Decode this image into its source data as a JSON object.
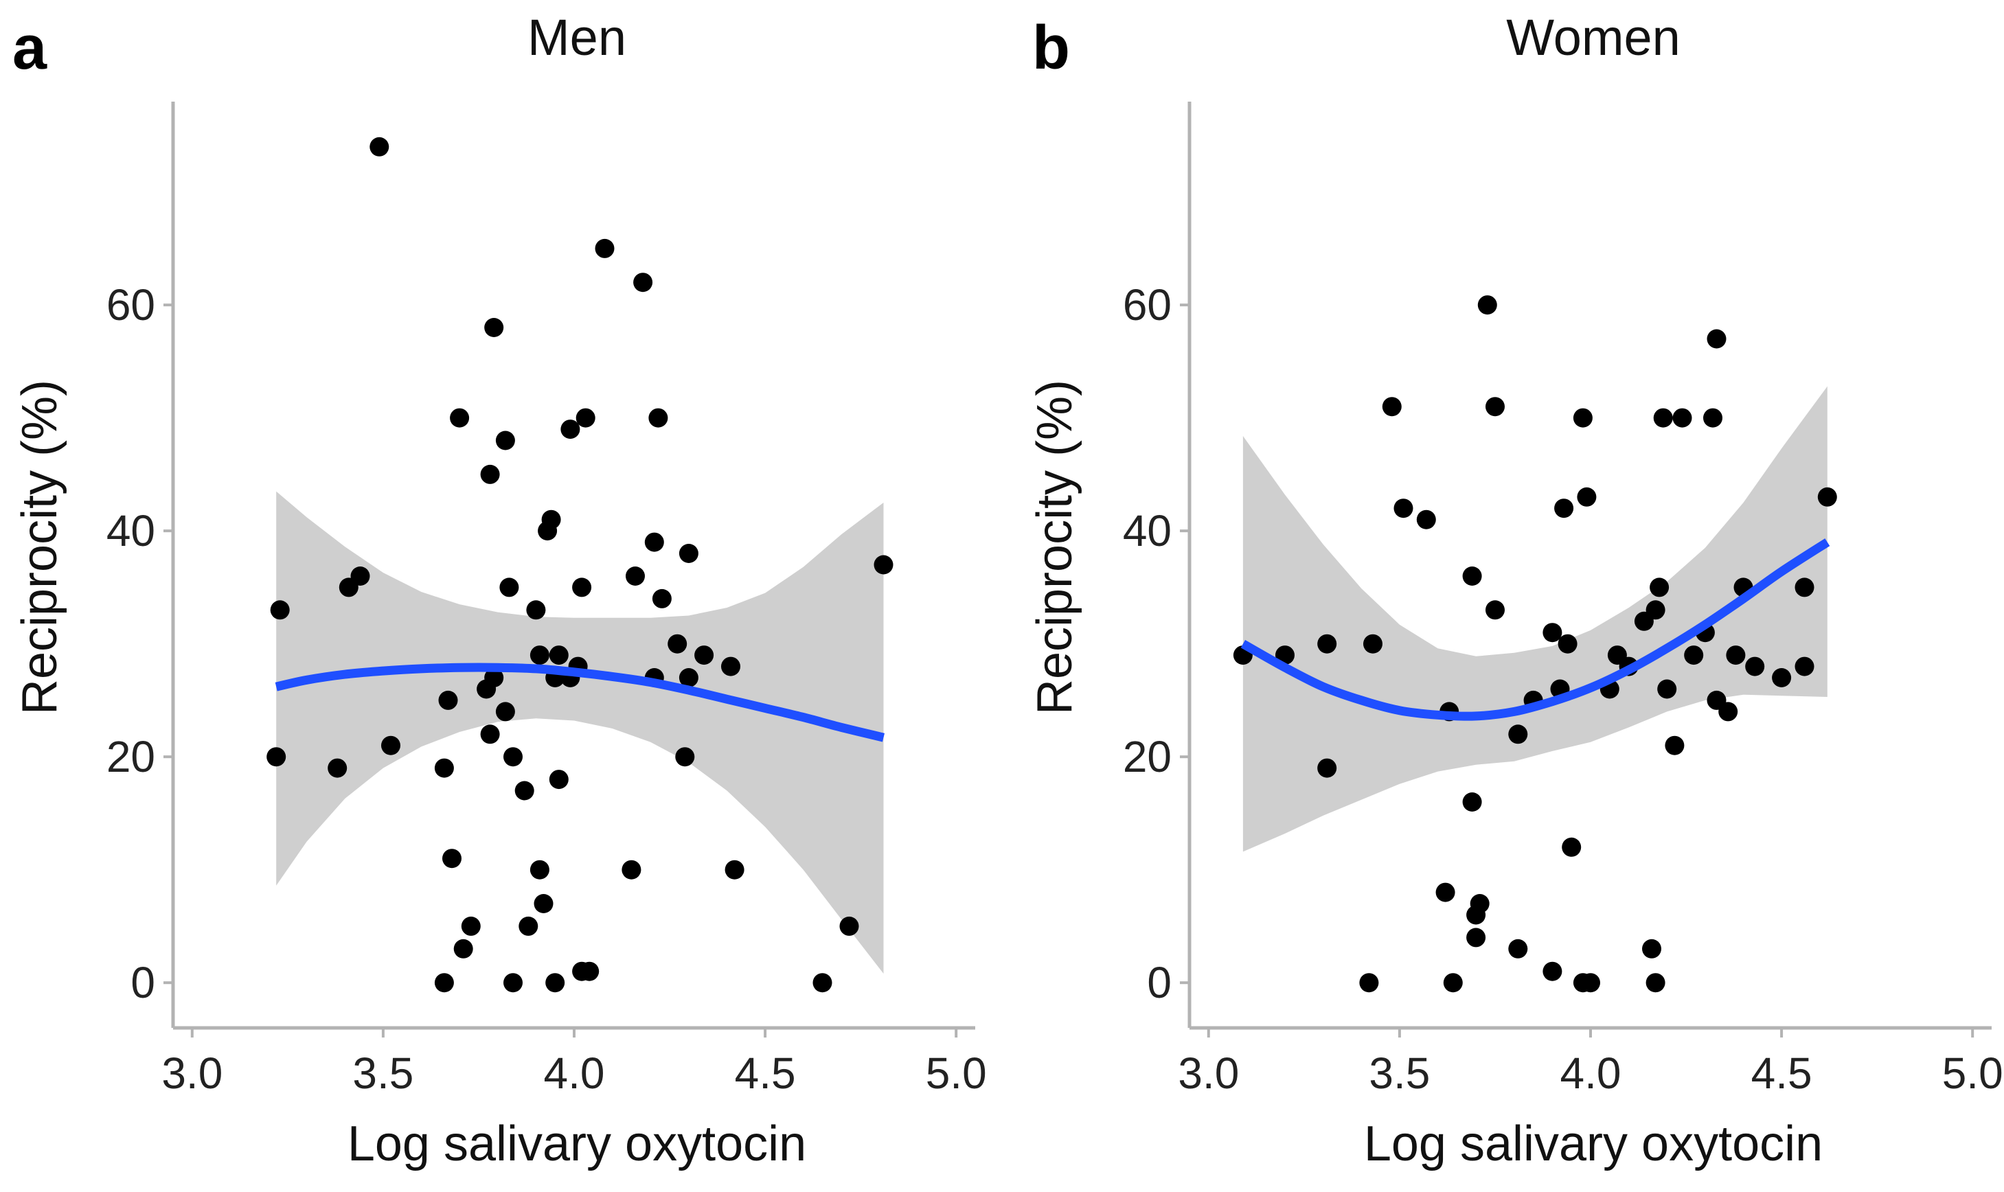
{
  "chart_data": [
    {
      "type": "scatter",
      "panel_label": "a",
      "title": "Men",
      "xlabel": "Log salivary oxytocin",
      "ylabel": "Reciprocity (%)",
      "xlim": [
        2.95,
        5.05
      ],
      "ylim": [
        -4,
        78
      ],
      "xticks": [
        3.0,
        3.5,
        4.0,
        4.5,
        5.0
      ],
      "xtick_labels": [
        "3.0",
        "3.5",
        "4.0",
        "4.5",
        "5.0"
      ],
      "yticks": [
        0,
        20,
        40,
        60
      ],
      "ytick_labels": [
        "0",
        "20",
        "40",
        "60"
      ],
      "points": [
        [
          3.22,
          20
        ],
        [
          3.23,
          33
        ],
        [
          3.38,
          19
        ],
        [
          3.41,
          35
        ],
        [
          3.44,
          36
        ],
        [
          3.49,
          74
        ],
        [
          3.52,
          21
        ],
        [
          3.66,
          19
        ],
        [
          3.66,
          0
        ],
        [
          3.67,
          25
        ],
        [
          3.68,
          11
        ],
        [
          3.7,
          50
        ],
        [
          3.71,
          3
        ],
        [
          3.73,
          5
        ],
        [
          3.77,
          26
        ],
        [
          3.78,
          22
        ],
        [
          3.78,
          45
        ],
        [
          3.79,
          27
        ],
        [
          3.79,
          58
        ],
        [
          3.82,
          24
        ],
        [
          3.82,
          48
        ],
        [
          3.83,
          35
        ],
        [
          3.84,
          20
        ],
        [
          3.84,
          0
        ],
        [
          3.87,
          17
        ],
        [
          3.88,
          5
        ],
        [
          3.9,
          33
        ],
        [
          3.91,
          29
        ],
        [
          3.91,
          10
        ],
        [
          3.92,
          7
        ],
        [
          3.93,
          40
        ],
        [
          3.94,
          41
        ],
        [
          3.95,
          27
        ],
        [
          3.95,
          0
        ],
        [
          3.96,
          29
        ],
        [
          3.96,
          18
        ],
        [
          3.99,
          27
        ],
        [
          3.99,
          49
        ],
        [
          4.01,
          28
        ],
        [
          4.02,
          1
        ],
        [
          4.02,
          35
        ],
        [
          4.03,
          50
        ],
        [
          4.04,
          1
        ],
        [
          4.08,
          65
        ],
        [
          4.15,
          10
        ],
        [
          4.16,
          36
        ],
        [
          4.18,
          62
        ],
        [
          4.21,
          39
        ],
        [
          4.21,
          27
        ],
        [
          4.22,
          50
        ],
        [
          4.23,
          34
        ],
        [
          4.27,
          30
        ],
        [
          4.29,
          20
        ],
        [
          4.3,
          38
        ],
        [
          4.3,
          27
        ],
        [
          4.34,
          29
        ],
        [
          4.41,
          28
        ],
        [
          4.42,
          10
        ],
        [
          4.65,
          0
        ],
        [
          4.72,
          5
        ],
        [
          4.81,
          37
        ]
      ],
      "fit": {
        "x": [
          3.22,
          3.3,
          3.4,
          3.5,
          3.6,
          3.7,
          3.8,
          3.9,
          4.0,
          4.1,
          4.2,
          4.3,
          4.4,
          4.5,
          4.6,
          4.7,
          4.81
        ],
        "y": [
          26.2,
          26.8,
          27.3,
          27.6,
          27.8,
          27.9,
          27.9,
          27.8,
          27.5,
          27.1,
          26.6,
          25.9,
          25.1,
          24.3,
          23.5,
          22.6,
          21.7
        ],
        "lower": [
          8.6,
          12.5,
          16.3,
          19.0,
          20.9,
          22.2,
          23.1,
          23.4,
          23.2,
          22.5,
          21.3,
          19.5,
          17.0,
          13.8,
          10.0,
          5.6,
          0.8
        ],
        "upper": [
          43.5,
          41.2,
          38.6,
          36.3,
          34.6,
          33.5,
          32.8,
          32.4,
          32.3,
          32.3,
          32.3,
          32.5,
          33.2,
          34.5,
          36.8,
          39.7,
          42.5
        ]
      }
    },
    {
      "type": "scatter",
      "panel_label": "b",
      "title": "Women",
      "xlabel": "Log salivary oxytocin",
      "ylabel": "Reciprocity (%)",
      "xlim": [
        2.95,
        5.05
      ],
      "ylim": [
        -4,
        78
      ],
      "xticks": [
        3.0,
        3.5,
        4.0,
        4.5,
        5.0
      ],
      "xtick_labels": [
        "3.0",
        "3.5",
        "4.0",
        "4.5",
        "5.0"
      ],
      "yticks": [
        0,
        20,
        40,
        60
      ],
      "ytick_labels": [
        "0",
        "20",
        "40",
        "60"
      ],
      "points": [
        [
          3.09,
          29
        ],
        [
          3.2,
          29
        ],
        [
          3.31,
          19
        ],
        [
          3.31,
          30
        ],
        [
          3.42,
          0
        ],
        [
          3.43,
          30
        ],
        [
          3.48,
          51
        ],
        [
          3.51,
          42
        ],
        [
          3.57,
          41
        ],
        [
          3.62,
          8
        ],
        [
          3.63,
          24
        ],
        [
          3.64,
          0
        ],
        [
          3.69,
          16
        ],
        [
          3.69,
          36
        ],
        [
          3.7,
          6
        ],
        [
          3.7,
          4
        ],
        [
          3.71,
          7
        ],
        [
          3.73,
          60
        ],
        [
          3.75,
          33
        ],
        [
          3.75,
          51
        ],
        [
          3.81,
          3
        ],
        [
          3.81,
          22
        ],
        [
          3.85,
          25
        ],
        [
          3.9,
          31
        ],
        [
          3.9,
          1
        ],
        [
          3.92,
          26
        ],
        [
          3.93,
          42
        ],
        [
          3.94,
          30
        ],
        [
          3.95,
          12
        ],
        [
          3.98,
          0
        ],
        [
          3.98,
          50
        ],
        [
          3.99,
          43
        ],
        [
          4.0,
          0
        ],
        [
          4.05,
          26
        ],
        [
          4.07,
          29
        ],
        [
          4.1,
          28
        ],
        [
          4.14,
          32
        ],
        [
          4.16,
          3
        ],
        [
          4.17,
          33
        ],
        [
          4.17,
          0
        ],
        [
          4.18,
          35
        ],
        [
          4.19,
          50
        ],
        [
          4.2,
          26
        ],
        [
          4.22,
          21
        ],
        [
          4.24,
          50
        ],
        [
          4.27,
          29
        ],
        [
          4.3,
          31
        ],
        [
          4.32,
          50
        ],
        [
          4.33,
          25
        ],
        [
          4.33,
          57
        ],
        [
          4.36,
          24
        ],
        [
          4.38,
          29
        ],
        [
          4.4,
          35
        ],
        [
          4.43,
          28
        ],
        [
          4.5,
          27
        ],
        [
          4.56,
          35
        ],
        [
          4.56,
          28
        ],
        [
          4.62,
          43
        ]
      ],
      "fit": {
        "x": [
          3.09,
          3.2,
          3.3,
          3.4,
          3.5,
          3.6,
          3.7,
          3.8,
          3.9,
          4.0,
          4.1,
          4.2,
          4.3,
          4.4,
          4.5,
          4.62
        ],
        "y": [
          30.0,
          27.9,
          26.2,
          25.0,
          24.1,
          23.7,
          23.6,
          24.0,
          24.9,
          26.1,
          27.7,
          29.6,
          31.7,
          34.0,
          36.4,
          39.0
        ],
        "lower": [
          11.6,
          13.2,
          14.8,
          16.2,
          17.6,
          18.7,
          19.3,
          19.6,
          20.5,
          21.3,
          22.6,
          24.0,
          25.0,
          25.5,
          25.4,
          25.3
        ],
        "upper": [
          48.4,
          43.2,
          38.8,
          34.9,
          31.7,
          29.6,
          28.9,
          29.2,
          29.8,
          31.2,
          33.2,
          35.5,
          38.5,
          42.5,
          47.3,
          52.8
        ]
      }
    }
  ]
}
